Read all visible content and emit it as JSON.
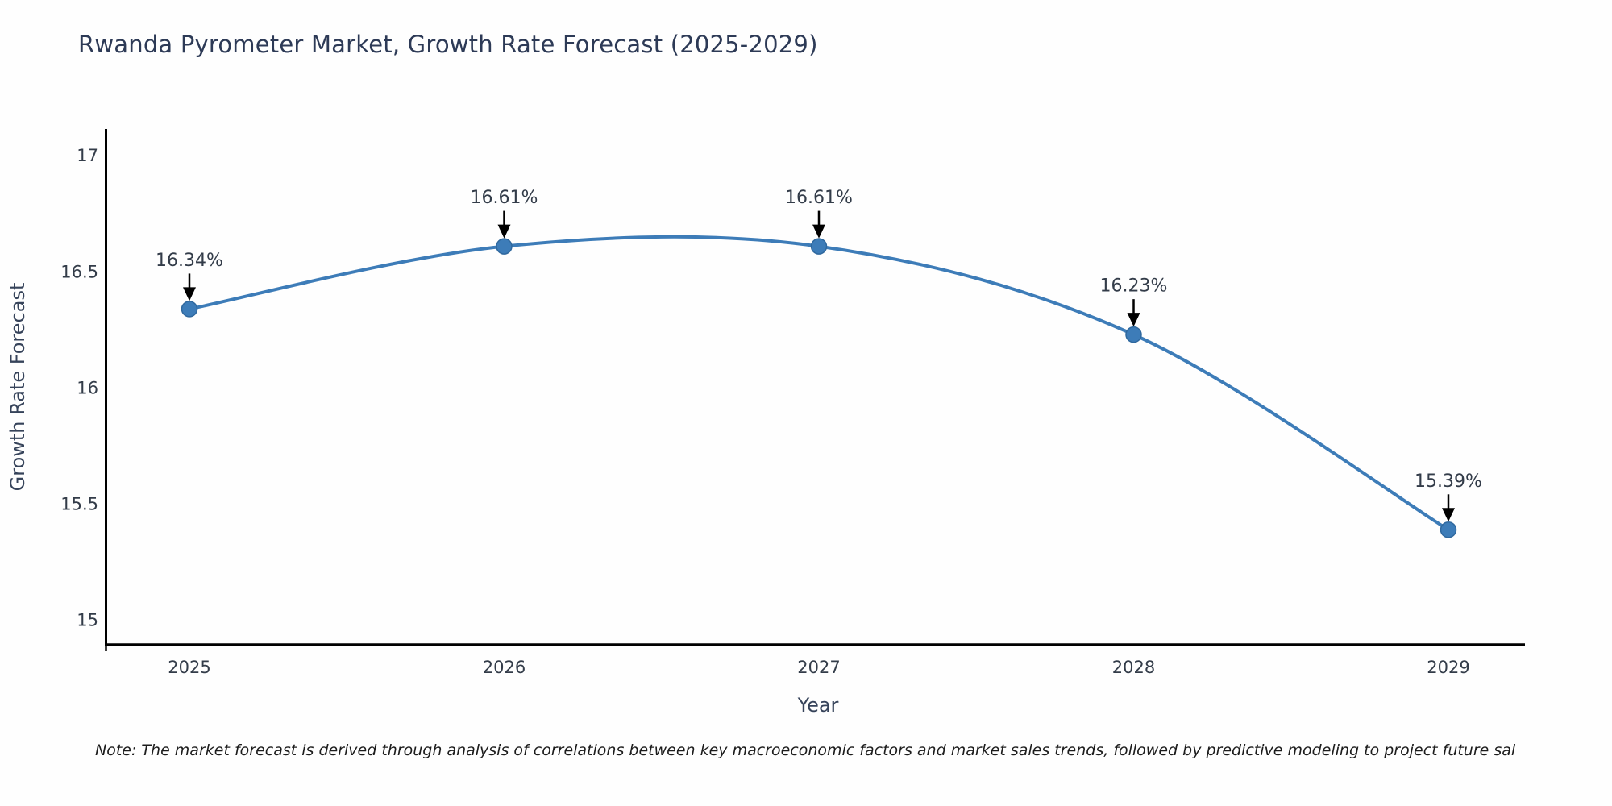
{
  "title": "Rwanda Pyrometer Market, Growth Rate Forecast (2025-2029)",
  "note": "Note: The market forecast is derived through analysis of correlations between key macroeconomic factors and market sales trends, followed by predictive modeling to project future sal",
  "colors": {
    "line": "#3d7cb8",
    "marker_fill": "#3d7cb8",
    "marker_edge": "#2f689e",
    "spine": "#000000",
    "annotation_arrow": "#000000",
    "title_text": "#2d3a56",
    "tick_text": "#333c49"
  },
  "chart_data": {
    "type": "line",
    "title": "Rwanda Pyrometer Market, Growth Rate Forecast (2025-2029)",
    "x": [
      "2025",
      "2026",
      "2027",
      "2028",
      "2029"
    ],
    "values": [
      16.34,
      16.61,
      16.61,
      16.23,
      15.39
    ],
    "point_labels": [
      "16.34%",
      "16.61%",
      "16.61%",
      "16.23%",
      "15.39%"
    ],
    "xlabel": "Year",
    "ylabel": "Growth Rate Forecast",
    "yticks": [
      15,
      15.5,
      16,
      16.5,
      17
    ],
    "ytick_labels": [
      "15",
      "15.5",
      "16",
      "16.5",
      "17"
    ],
    "ylim": [
      14.895,
      17.115
    ],
    "grid": false,
    "legend": "none",
    "line_style": "smooth-spline",
    "annotation_style": "value-above-with-down-arrow"
  }
}
